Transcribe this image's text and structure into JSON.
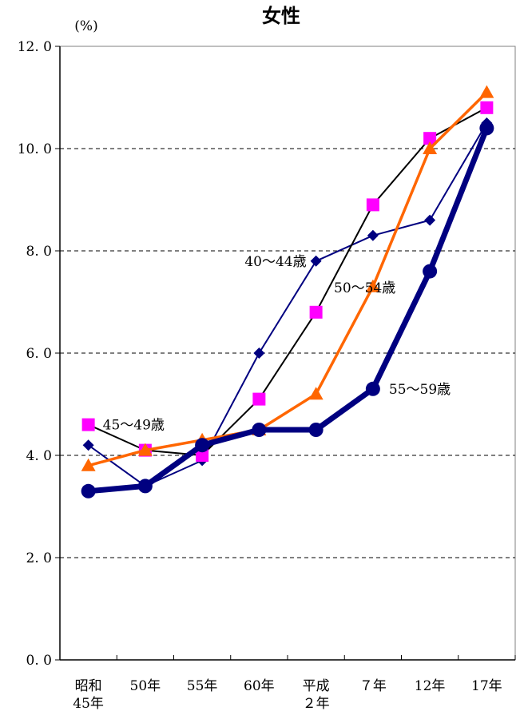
{
  "chart_data": {
    "type": "line",
    "title": "女性",
    "ylabel": "(%)",
    "xlabel": "",
    "ylim": [
      0,
      12
    ],
    "yticks": [
      "0. 0",
      "2. 0",
      "4. 0",
      "6. 0",
      "8. 0",
      "10. 0",
      "12. 0"
    ],
    "categories": [
      [
        "昭和",
        "45年"
      ],
      [
        "50年"
      ],
      [
        "55年"
      ],
      [
        "60年"
      ],
      [
        "平成",
        "２年"
      ],
      [
        "７年"
      ],
      [
        "12年"
      ],
      [
        "17年"
      ]
    ],
    "grid": "horizontal-dashed",
    "series": [
      {
        "name": "40～44歳",
        "color": "#000080",
        "marker": "diamond",
        "values": [
          4.2,
          3.4,
          3.9,
          6.0,
          7.8,
          8.3,
          8.6,
          10.5
        ]
      },
      {
        "name": "45～49歳",
        "color": "#FF00FF",
        "marker": "square",
        "values": [
          4.6,
          4.1,
          4.0,
          5.1,
          6.8,
          8.9,
          10.2,
          10.8
        ]
      },
      {
        "name": "50～54歳",
        "color": "#FF6600",
        "marker": "triangle",
        "values": [
          3.8,
          4.1,
          4.3,
          4.5,
          5.2,
          7.3,
          10.0,
          11.1
        ]
      },
      {
        "name": "55～59歳",
        "color": "#000080",
        "marker": "circle",
        "values": [
          3.3,
          3.4,
          4.2,
          4.5,
          4.5,
          5.3,
          7.6,
          10.4
        ]
      }
    ]
  }
}
